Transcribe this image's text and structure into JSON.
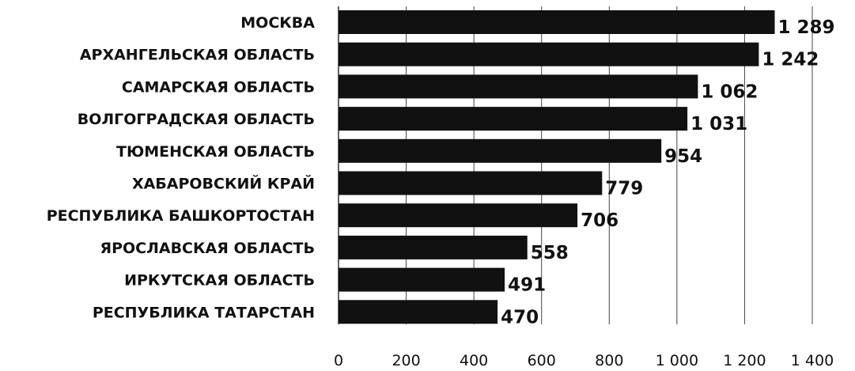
{
  "chart_data": {
    "type": "bar",
    "orientation": "horizontal",
    "categories": [
      "МОСКВА",
      "АРХАНГЕЛЬСКАЯ ОБЛАСТЬ",
      "САМАРСКАЯ ОБЛАСТЬ",
      "ВОЛГОГРАДСКАЯ ОБЛАСТЬ",
      "ТЮМЕНСКАЯ ОБЛАСТЬ",
      "ХАБАРОВСКИЙ КРАЙ",
      "РЕСПУБЛИКА БАШКОРТОСТАН",
      "ЯРОСЛАВСКАЯ ОБЛАСТЬ",
      "ИРКУТСКАЯ ОБЛАСТЬ",
      "РЕСПУБЛИКА ТАТАРСТАН"
    ],
    "values": [
      1289,
      1242,
      1062,
      1031,
      954,
      779,
      706,
      558,
      491,
      470
    ],
    "value_labels": [
      "1 289",
      "1 242",
      "1 062",
      "1 031",
      "954",
      "779",
      "706",
      "558",
      "491",
      "470"
    ],
    "xlim": [
      0,
      1400
    ],
    "xticks": [
      0,
      200,
      400,
      600,
      800,
      1000,
      1200,
      1400
    ],
    "xtick_labels": [
      "0",
      "200",
      "400",
      "600",
      "800",
      "1 000",
      "1 200",
      "1 400"
    ],
    "grid": true,
    "colors": {
      "bar": "#111111",
      "grid": "#444444",
      "text": "#111111"
    }
  }
}
